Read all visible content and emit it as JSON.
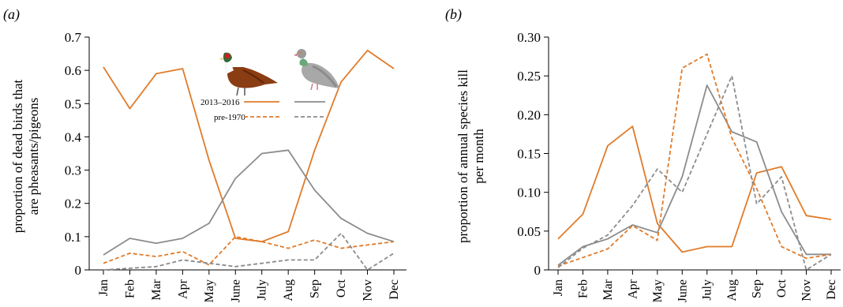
{
  "chart_data": [
    {
      "type": "line",
      "panel_label": "(a)",
      "ylabel_line1": "proportion of dead birds that",
      "ylabel_line2": "are pheasants/pigeons",
      "ylim": [
        0,
        0.7
      ],
      "yticks": [
        "0",
        "0.1",
        "0.2",
        "0.3",
        "0.4",
        "0.5",
        "0.6",
        "0.7"
      ],
      "categories": [
        "Jan",
        "Feb",
        "Mar",
        "Apr",
        "May",
        "June",
        "July",
        "Aug",
        "Sep",
        "Oct",
        "Nov",
        "Dec"
      ],
      "legend": {
        "row1": "2013–2016",
        "row2": "pre-1970",
        "placement": "top-center",
        "icons": [
          "pheasant-icon",
          "pigeon-icon"
        ]
      },
      "series": [
        {
          "bird": "pheasant",
          "period": "2013–2016",
          "style": "solid",
          "color": "#e07b2a",
          "values": [
            0.61,
            0.485,
            0.59,
            0.605,
            0.33,
            0.095,
            0.085,
            0.115,
            0.36,
            0.565,
            0.66,
            0.605
          ]
        },
        {
          "bird": "pigeon",
          "period": "2013–2016",
          "style": "solid",
          "color": "#8c8c8c",
          "values": [
            0.045,
            0.095,
            0.08,
            0.095,
            0.14,
            0.275,
            0.35,
            0.36,
            0.24,
            0.155,
            0.11,
            0.085
          ]
        },
        {
          "bird": "pheasant",
          "period": "pre-1970",
          "style": "dashed",
          "color": "#e07b2a",
          "values": [
            0.02,
            0.05,
            0.04,
            0.055,
            0.015,
            0.1,
            0.085,
            0.065,
            0.09,
            0.065,
            0.075,
            0.085
          ]
        },
        {
          "bird": "pigeon",
          "period": "pre-1970",
          "style": "dashed",
          "color": "#8c8c8c",
          "values": [
            0.0,
            0.005,
            0.01,
            0.03,
            0.02,
            0.01,
            0.02,
            0.03,
            0.03,
            0.11,
            0.0,
            0.05
          ]
        }
      ]
    },
    {
      "type": "line",
      "panel_label": "(b)",
      "ylabel_line1": "proportion of annual species kill",
      "ylabel_line2": "per month",
      "ylim": [
        0,
        0.3
      ],
      "yticks": [
        "0",
        "0.05",
        "0.10",
        "0.15",
        "0.20",
        "0.25",
        "0.30"
      ],
      "categories": [
        "Jan",
        "Feb",
        "Mar",
        "Apr",
        "May",
        "June",
        "July",
        "Aug",
        "Sep",
        "Oct",
        "Nov",
        "Dec"
      ],
      "series": [
        {
          "bird": "pheasant",
          "period": "2013–2016",
          "style": "solid",
          "color": "#e07b2a",
          "values": [
            0.04,
            0.072,
            0.16,
            0.185,
            0.06,
            0.023,
            0.03,
            0.03,
            0.125,
            0.133,
            0.07,
            0.065
          ]
        },
        {
          "bird": "pigeon",
          "period": "2013–2016",
          "style": "solid",
          "color": "#8c8c8c",
          "values": [
            0.006,
            0.03,
            0.04,
            0.058,
            0.048,
            0.12,
            0.238,
            0.178,
            0.165,
            0.075,
            0.02,
            0.02
          ]
        },
        {
          "bird": "pheasant",
          "period": "pre-1970",
          "style": "dashed",
          "color": "#e07b2a",
          "values": [
            0.005,
            0.016,
            0.027,
            0.057,
            0.038,
            0.26,
            0.278,
            0.17,
            0.105,
            0.03,
            0.015,
            0.02
          ]
        },
        {
          "bird": "pigeon",
          "period": "pre-1970",
          "style": "dashed",
          "color": "#8c8c8c",
          "values": [
            0.003,
            0.028,
            0.045,
            0.083,
            0.13,
            0.1,
            0.175,
            0.25,
            0.085,
            0.12,
            0.0,
            0.02
          ]
        }
      ]
    }
  ]
}
